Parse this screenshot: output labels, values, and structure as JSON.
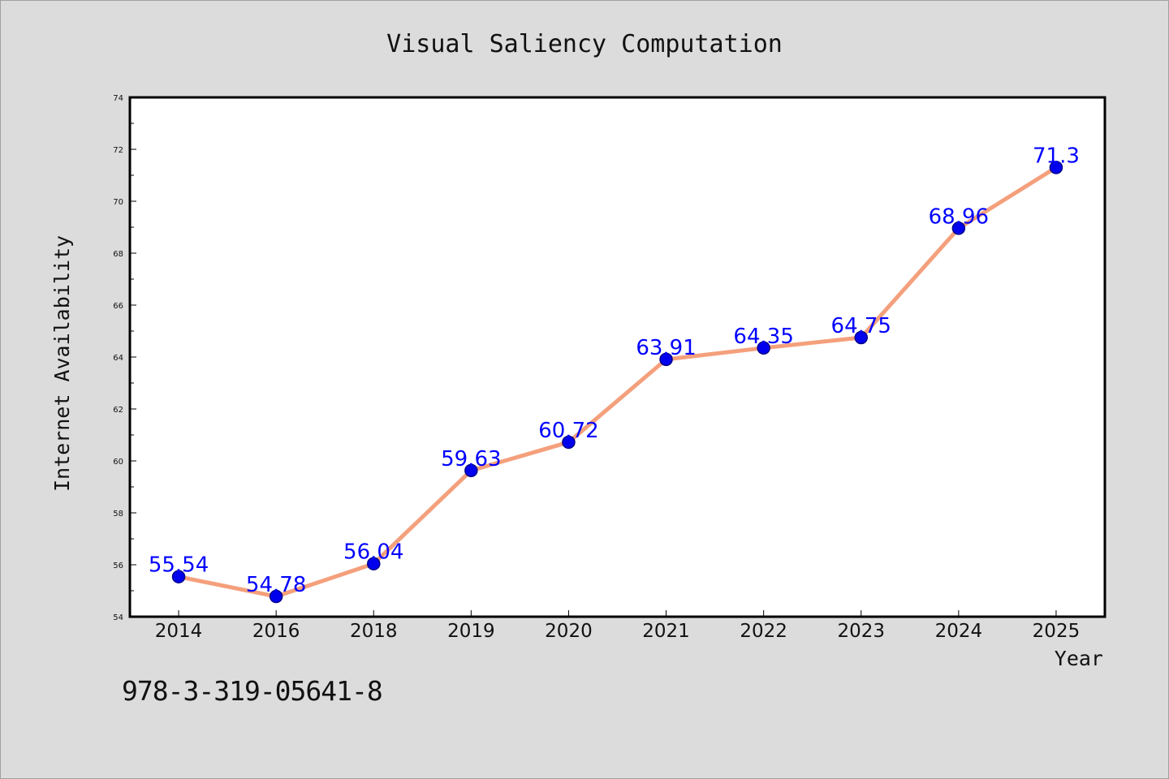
{
  "figure": {
    "identifier_text": "978-3-319-05641-8",
    "colors": {
      "background": "#dcdcdc",
      "plot_background": "#ffffff",
      "line": "#f4a07c",
      "marker": "#0000ee",
      "marker_edge": "#00008b",
      "label": "#0000ff",
      "text": "#111111"
    }
  },
  "chart_data": {
    "type": "line",
    "title": "Visual Saliency Computation",
    "xlabel": "Year",
    "ylabel": "Internet Availability",
    "categories": [
      "2014",
      "2016",
      "2018",
      "2019",
      "2020",
      "2021",
      "2022",
      "2023",
      "2024",
      "2025"
    ],
    "series": [
      {
        "values": [
          55.54,
          54.78,
          56.04,
          59.63,
          60.72,
          63.91,
          64.35,
          64.75,
          68.96,
          71.3
        ],
        "data_labels": [
          "55.54",
          "54.78",
          "56.04",
          "59.63",
          "60.72",
          "63.91",
          "64.35",
          "64.75",
          "68.96",
          "71.3"
        ]
      }
    ],
    "ylim": [
      54,
      74
    ],
    "yticks": [
      54,
      56,
      58,
      60,
      62,
      64,
      66,
      68,
      70,
      72,
      74
    ],
    "ytick_labels": [
      "54",
      "56",
      "58",
      "60",
      "62",
      "64",
      "66",
      "68",
      "70",
      "72",
      "74"
    ],
    "grid": false,
    "legend": "none"
  }
}
